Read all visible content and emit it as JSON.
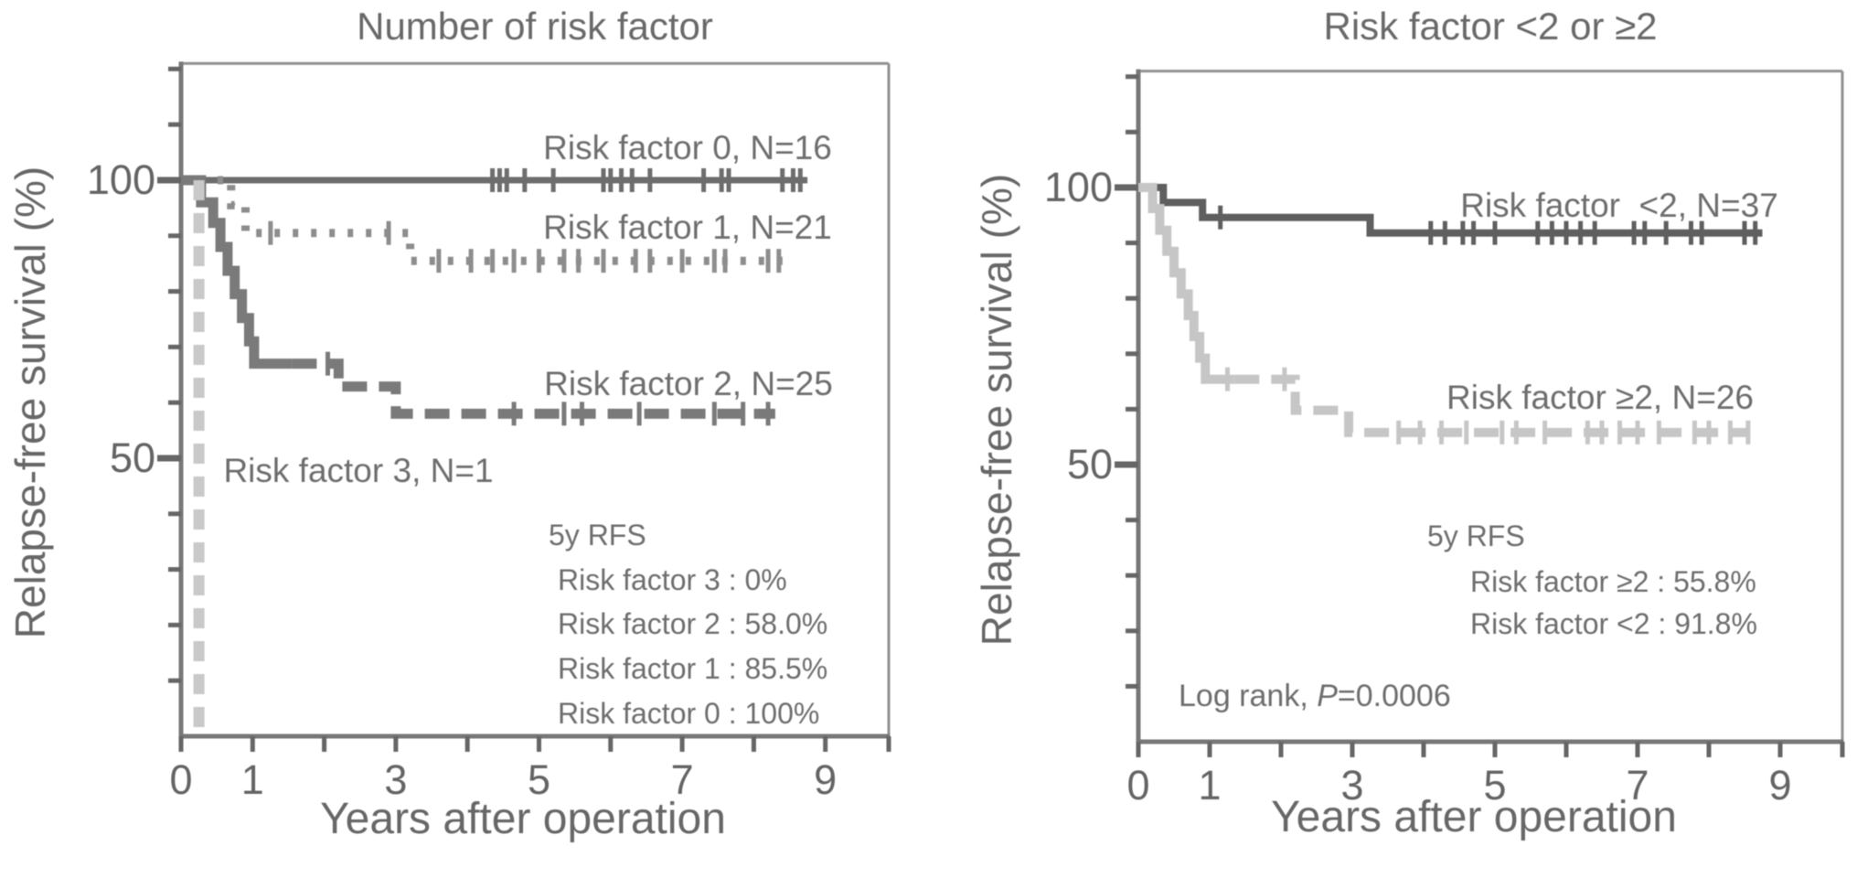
{
  "chart_data": [
    {
      "type": "line",
      "subtype": "kaplan_meier_step",
      "title": "Number of risk factor",
      "xlabel": "Years after operation",
      "ylabel": "Relapse-free survival (%)",
      "xlim": [
        0,
        9.89
      ],
      "ylim": [
        0,
        121
      ],
      "grid": false,
      "legend_position": "inline-right",
      "xticks": [
        0,
        1,
        2,
        3,
        4,
        5,
        6,
        7,
        8,
        9
      ],
      "xticks_labeled": [
        {
          "v": 0,
          "label": "0"
        },
        {
          "v": 1,
          "label": "1"
        },
        {
          "v": 3,
          "label": "3"
        },
        {
          "v": 5,
          "label": "5"
        },
        {
          "v": 7,
          "label": "7"
        },
        {
          "v": 9,
          "label": "9"
        }
      ],
      "yticks_minor_step": 10,
      "yticks_labeled": [
        {
          "v": 100,
          "label": "100"
        },
        {
          "v": 50,
          "label": "50"
        }
      ],
      "series": [
        {
          "name": "Risk factor 0",
          "n": 16,
          "legend": "Risk factor 0, N=16",
          "color": "#6d6d6d",
          "line_style": "solid",
          "width": 7,
          "points": [
            [
              0,
              100
            ],
            [
              8.75,
              100
            ]
          ],
          "censor_marks": [
            [
              4.35,
              100
            ],
            [
              4.45,
              100
            ],
            [
              4.55,
              100
            ],
            [
              4.8,
              100
            ],
            [
              5.2,
              100
            ],
            [
              5.9,
              100
            ],
            [
              6.0,
              100
            ],
            [
              6.15,
              100
            ],
            [
              6.3,
              100
            ],
            [
              6.55,
              100
            ],
            [
              7.3,
              100
            ],
            [
              7.55,
              100
            ],
            [
              7.65,
              100
            ],
            [
              8.4,
              100
            ],
            [
              8.55,
              100
            ],
            [
              8.65,
              100
            ]
          ]
        },
        {
          "name": "Risk factor 1",
          "n": 21,
          "legend": "Risk factor 1, N=21",
          "color": "#8d8d8d",
          "line_style": "dotted",
          "width": 9,
          "dash": "6 14",
          "points": [
            [
              0,
              100
            ],
            [
              0.7,
              100
            ],
            [
              0.7,
              95.5
            ],
            [
              0.9,
              95.5
            ],
            [
              0.9,
              90.5
            ],
            [
              3.2,
              90.5
            ],
            [
              3.2,
              85.5
            ],
            [
              8.55,
              85.5
            ]
          ],
          "censor_marks": [
            [
              1.25,
              90.5
            ],
            [
              2.9,
              90.5
            ],
            [
              3.6,
              85.5
            ],
            [
              4.05,
              85.5
            ],
            [
              4.35,
              85.5
            ],
            [
              4.65,
              85.5
            ],
            [
              5.0,
              85.5
            ],
            [
              5.35,
              85.5
            ],
            [
              5.55,
              85.5
            ],
            [
              5.9,
              85.5
            ],
            [
              6.35,
              85.5
            ],
            [
              6.55,
              85.5
            ],
            [
              7.0,
              85.5
            ],
            [
              7.45,
              85.5
            ],
            [
              7.6,
              85.5
            ],
            [
              8.2,
              85.5
            ],
            [
              8.35,
              85.5
            ]
          ]
        },
        {
          "name": "Risk factor 2",
          "n": 25,
          "legend": "Risk factor 2, N=25",
          "color": "#7a7a7a",
          "line_style": "dashed",
          "width": 11,
          "dash": "27 13",
          "dash_from_year": 1.55,
          "points": [
            [
              0,
              100
            ],
            [
              0.28,
              100
            ],
            [
              0.28,
              96
            ],
            [
              0.45,
              96
            ],
            [
              0.45,
              92.3
            ],
            [
              0.55,
              92.3
            ],
            [
              0.55,
              88
            ],
            [
              0.65,
              88
            ],
            [
              0.65,
              83.7
            ],
            [
              0.75,
              83.7
            ],
            [
              0.75,
              79.5
            ],
            [
              0.85,
              79.5
            ],
            [
              0.85,
              75.2
            ],
            [
              0.95,
              75.2
            ],
            [
              0.95,
              71
            ],
            [
              1.02,
              71
            ],
            [
              1.02,
              67
            ],
            [
              2.2,
              67
            ],
            [
              2.2,
              62.9
            ],
            [
              3.0,
              62.9
            ],
            [
              3.0,
              58
            ],
            [
              8.3,
              58
            ]
          ],
          "censor_marks": [
            [
              2.05,
              67
            ],
            [
              4.65,
              58
            ],
            [
              5.35,
              58
            ],
            [
              5.6,
              58
            ],
            [
              6.4,
              58
            ],
            [
              7.45,
              58
            ],
            [
              7.85,
              58
            ],
            [
              8.2,
              58
            ]
          ]
        },
        {
          "name": "Risk factor 3",
          "n": 1,
          "legend": "Risk factor 3, N=1",
          "color": "#c9c9c9",
          "line_style": "dashed",
          "width": 12,
          "dash": "22 14",
          "points": [
            [
              0.25,
              100
            ],
            [
              0.25,
              0
            ]
          ],
          "censor_marks": []
        }
      ],
      "annotations": {
        "stats_title": "5y RFS",
        "stats_lines": [
          "Risk factor 3 : 0%",
          "Risk factor 2 : 58.0%",
          "Risk factor 1 : 85.5%",
          "Risk factor 0 : 100%"
        ]
      }
    },
    {
      "type": "line",
      "subtype": "kaplan_meier_step",
      "title": "Risk factor <2 or ≥2",
      "xlabel": "Years after operation",
      "ylabel": "Relapse-free survival (%)",
      "xlim": [
        0,
        9.87
      ],
      "ylim": [
        0,
        121
      ],
      "grid": false,
      "legend_position": "inline-right",
      "xticks": [
        0,
        1,
        2,
        3,
        4,
        5,
        6,
        7,
        8,
        9
      ],
      "xticks_labeled": [
        {
          "v": 0,
          "label": "0"
        },
        {
          "v": 1,
          "label": "1"
        },
        {
          "v": 3,
          "label": "3"
        },
        {
          "v": 5,
          "label": "5"
        },
        {
          "v": 7,
          "label": "7"
        },
        {
          "v": 9,
          "label": "9"
        }
      ],
      "yticks_minor_step": 10,
      "yticks_labeled": [
        {
          "v": 100,
          "label": "100"
        },
        {
          "v": 50,
          "label": "50"
        }
      ],
      "series": [
        {
          "name": "Risk factor <2",
          "n": 37,
          "legend": "Risk factor  <2, N=37",
          "color": "#5f5f5f",
          "line_style": "solid",
          "width": 8,
          "points": [
            [
              0,
              100
            ],
            [
              0.35,
              100
            ],
            [
              0.35,
              97.3
            ],
            [
              0.9,
              97.3
            ],
            [
              0.9,
              94.6
            ],
            [
              3.25,
              94.6
            ],
            [
              3.25,
              91.8
            ],
            [
              8.75,
              91.8
            ]
          ],
          "censor_marks": [
            [
              1.15,
              94.6
            ],
            [
              4.1,
              91.8
            ],
            [
              4.3,
              91.8
            ],
            [
              4.55,
              91.8
            ],
            [
              4.7,
              91.8
            ],
            [
              5.0,
              91.8
            ],
            [
              5.6,
              91.8
            ],
            [
              5.8,
              91.8
            ],
            [
              6.0,
              91.8
            ],
            [
              6.2,
              91.8
            ],
            [
              6.4,
              91.8
            ],
            [
              6.95,
              91.8
            ],
            [
              7.1,
              91.8
            ],
            [
              7.4,
              91.8
            ],
            [
              7.75,
              91.8
            ],
            [
              7.9,
              91.8
            ],
            [
              8.5,
              91.8
            ],
            [
              8.65,
              91.8
            ]
          ]
        },
        {
          "name": "Risk factor ≥2",
          "n": 26,
          "legend": "Risk factor ≥2, N=26",
          "color": "#c6c6c6",
          "line_style": "dashed",
          "width": 10,
          "dash": "27 13",
          "dash_from_year": 1.35,
          "points": [
            [
              0,
              100
            ],
            [
              0.2,
              100
            ],
            [
              0.2,
              96.2
            ],
            [
              0.3,
              96.2
            ],
            [
              0.3,
              92.3
            ],
            [
              0.4,
              92.3
            ],
            [
              0.4,
              88.5
            ],
            [
              0.5,
              88.5
            ],
            [
              0.5,
              84.6
            ],
            [
              0.6,
              84.6
            ],
            [
              0.6,
              80.8
            ],
            [
              0.7,
              80.8
            ],
            [
              0.7,
              76.9
            ],
            [
              0.78,
              76.9
            ],
            [
              0.78,
              73.1
            ],
            [
              0.86,
              73.1
            ],
            [
              0.86,
              69.2
            ],
            [
              0.94,
              69.2
            ],
            [
              0.94,
              65.4
            ],
            [
              2.2,
              65.4
            ],
            [
              2.2,
              59.8
            ],
            [
              2.95,
              59.8
            ],
            [
              2.95,
              55.8
            ],
            [
              8.55,
              55.8
            ]
          ],
          "censor_marks": [
            [
              1.25,
              65.4
            ],
            [
              2.05,
              65.4
            ],
            [
              3.65,
              55.8
            ],
            [
              3.95,
              55.8
            ],
            [
              4.25,
              55.8
            ],
            [
              4.6,
              55.8
            ],
            [
              5.1,
              55.8
            ],
            [
              5.3,
              55.8
            ],
            [
              5.7,
              55.8
            ],
            [
              6.3,
              55.8
            ],
            [
              6.5,
              55.8
            ],
            [
              6.75,
              55.8
            ],
            [
              7.0,
              55.8
            ],
            [
              7.3,
              55.8
            ],
            [
              7.8,
              55.8
            ],
            [
              8.0,
              55.8
            ],
            [
              8.3,
              55.8
            ],
            [
              8.55,
              55.8
            ]
          ]
        }
      ],
      "annotations": {
        "stats_title": "5y RFS",
        "stats_lines": [
          "Risk factor ≥2 : 55.8%",
          "Risk factor <2 : 91.8%"
        ],
        "log_rank_prefix": "Log rank, ",
        "log_rank_p": "P",
        "log_rank_value": "=0.0006"
      }
    }
  ]
}
